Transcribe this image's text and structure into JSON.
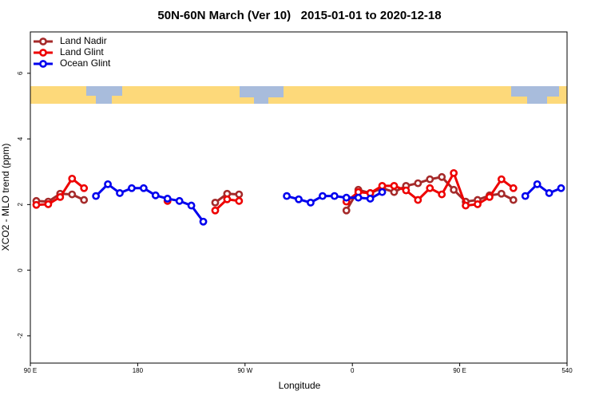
{
  "chart_data": {
    "type": "line",
    "title": "50N-60N March (Ver 10)   2015-01-01 to 2020-12-18",
    "x_label": "Longitude",
    "y_label": "XCO2 - MLO trend (ppm)",
    "x": [
      95,
      105,
      115,
      125,
      135,
      145,
      155,
      165,
      175,
      185,
      195,
      205,
      215,
      225,
      235,
      245,
      255,
      265,
      275,
      285,
      295,
      305,
      315,
      325,
      335,
      345,
      355,
      365,
      375,
      385,
      395,
      405,
      415,
      425,
      435,
      445,
      455,
      465,
      475,
      485,
      495,
      505,
      515,
      525,
      535
    ],
    "series": [
      {
        "name": "Land Nadir",
        "color": "#a52a2a",
        "values": [
          2.11,
          2.09,
          2.33,
          2.31,
          2.14,
          null,
          null,
          null,
          null,
          null,
          null,
          null,
          null,
          null,
          null,
          2.06,
          2.33,
          2.31,
          null,
          null,
          null,
          null,
          null,
          null,
          null,
          null,
          1.82,
          2.45,
          2.35,
          2.5,
          2.38,
          2.57,
          2.65,
          2.77,
          2.84,
          2.45,
          2.09,
          2.14,
          2.28,
          2.33,
          2.14,
          null,
          null,
          null,
          null
        ]
      },
      {
        "name": "Land Glint",
        "color": "#ee0000",
        "values": [
          1.99,
          2.01,
          2.23,
          2.79,
          2.5,
          null,
          null,
          null,
          null,
          null,
          null,
          2.11,
          null,
          null,
          null,
          1.82,
          2.16,
          2.11,
          null,
          null,
          null,
          null,
          null,
          null,
          null,
          null,
          2.09,
          2.38,
          2.35,
          2.57,
          2.57,
          2.43,
          2.14,
          2.5,
          2.31,
          2.96,
          1.97,
          2.01,
          2.23,
          2.77,
          2.5,
          null,
          null,
          null,
          null
        ]
      },
      {
        "name": "Ocean Glint",
        "color": "#0000ee",
        "values": [
          null,
          null,
          null,
          null,
          null,
          2.26,
          2.62,
          2.35,
          2.5,
          2.5,
          2.28,
          2.18,
          2.11,
          1.97,
          1.48,
          null,
          null,
          null,
          null,
          null,
          null,
          2.26,
          2.16,
          2.06,
          2.26,
          2.26,
          2.21,
          2.21,
          2.18,
          2.38,
          null,
          null,
          null,
          null,
          null,
          null,
          null,
          null,
          null,
          null,
          null,
          2.26,
          2.62,
          2.35,
          2.5
        ]
      }
    ],
    "xlim": [
      90,
      540
    ],
    "ylim": [
      -2.83,
      7.26
    ],
    "xticks": [
      {
        "value": 90,
        "label": "90 E"
      },
      180,
      {
        "value": 270,
        "label": "90 W"
      },
      {
        "value": 360,
        "label": "0"
      },
      {
        "value": 450,
        "label": "90 E"
      },
      540
    ],
    "yticks": [
      -2,
      0,
      2,
      4,
      6
    ],
    "legend": "top-left"
  }
}
